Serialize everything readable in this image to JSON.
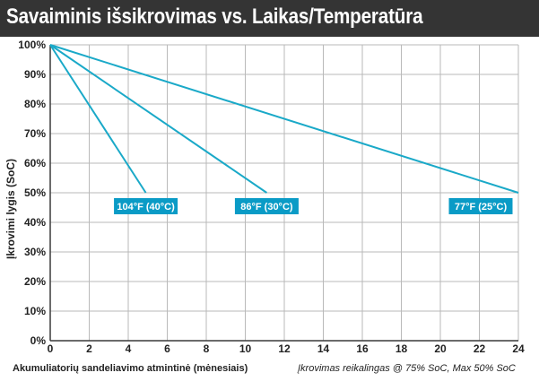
{
  "title": "Savaiminis išsikrovimas vs. Laikas/Temperatūra",
  "colors": {
    "title_background": "#343434",
    "series": "#1aa9c8",
    "label_background": "#0a9bc6",
    "grid": "#b9b9b9",
    "axis": "#3a3a3a"
  },
  "chart_data": {
    "type": "line",
    "xlabel": "Akumuliatorių sandeliavimo atmintinė (mėnesiais)",
    "ylabel": "Įkrovimi lygis (SoC)",
    "note": "Įkrovimas reikalingas @ 75% SoC, Max 50% SoC",
    "xlim": [
      0,
      24
    ],
    "ylim": [
      0,
      100
    ],
    "x_ticks": [
      "0",
      "2",
      "4",
      "6",
      "8",
      "10",
      "12",
      "14",
      "16",
      "18",
      "20",
      "22",
      "24"
    ],
    "y_ticks": [
      "0%",
      "10%",
      "20%",
      "30%",
      "40%",
      "50%",
      "60%",
      "70%",
      "80%",
      "90%",
      "100%"
    ],
    "grid": true,
    "series": [
      {
        "name": "104°F (40°C)",
        "x": [
          0,
          4.9
        ],
        "y": [
          100,
          50
        ]
      },
      {
        "name": "86°F (30°C)",
        "x": [
          0,
          11.1
        ],
        "y": [
          100,
          50
        ]
      },
      {
        "name": "77°F (25°C)",
        "x": [
          0,
          24
        ],
        "y": [
          100,
          50
        ]
      }
    ]
  }
}
